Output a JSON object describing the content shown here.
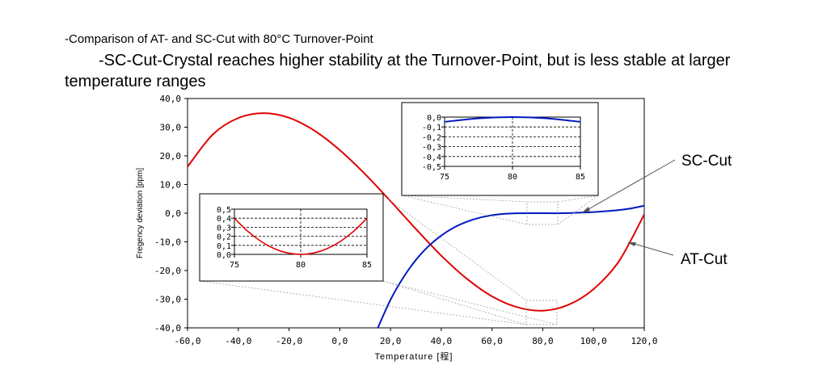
{
  "heading": "-Comparison of AT- and SC-Cut with 80°C Turnover-Point",
  "subheading": "-SC-Cut-Crystal reaches higher stability at the Turnover-Point, but is less stable at larger temperature ranges",
  "colors": {
    "at_cut": "#e00000",
    "sc_cut": "#0018c0"
  },
  "chart_data": [
    {
      "type": "line",
      "xlabel": "Temperature [程]",
      "ylabel": "Fregency deviation [ppm]",
      "xlim": [
        -60,
        120
      ],
      "ylim": [
        -40,
        40
      ],
      "xticks": [
        "-60,0",
        "-40,0",
        "-20,0",
        "0,0",
        "20,0",
        "40,0",
        "60,0",
        "80,0",
        "100,0",
        "120,0"
      ],
      "yticks": [
        "40,0",
        "30,0",
        "20,0",
        "10,0",
        "0,0",
        "-10,0",
        "-20,0",
        "-30,0",
        "-40,0"
      ],
      "annotations": [
        "SC-Cut",
        "AT-Cut"
      ],
      "series": [
        {
          "name": "AT-Cut",
          "x": [
            -60,
            -50,
            -40,
            -30,
            -20,
            -10,
            0,
            10,
            20,
            30,
            40,
            50,
            60,
            70,
            80,
            90,
            100,
            110,
            120
          ],
          "y": [
            16.2,
            27.5,
            33.2,
            34.9,
            33.3,
            28.8,
            22.0,
            13.6,
            4.2,
            -5.5,
            -14.8,
            -22.8,
            -29.0,
            -32.8,
            -34.0,
            -32.0,
            -26.5,
            -16.8,
            -0.4
          ]
        },
        {
          "name": "SC-Cut",
          "x": [
            15,
            20,
            25,
            30,
            35,
            40,
            45,
            50,
            55,
            60,
            65,
            70,
            75,
            80,
            85,
            90,
            95,
            100,
            105,
            110,
            115,
            120
          ],
          "y": [
            -40.0,
            -30.2,
            -22.5,
            -16.3,
            -11.5,
            -7.8,
            -5.0,
            -3.0,
            -1.6,
            -0.7,
            -0.2,
            -0.04,
            -0.01,
            0.0,
            -0.02,
            0.05,
            0.2,
            0.4,
            0.7,
            1.1,
            1.7,
            2.6
          ]
        }
      ]
    },
    {
      "type": "line",
      "xlim": [
        75,
        85
      ],
      "ylim": [
        -0.5,
        0
      ],
      "xticks": [
        "75",
        "80",
        "85"
      ],
      "yticks": [
        "0,0",
        "-0,1",
        "-0,2",
        "-0,3",
        "-0,4",
        "-0,5"
      ],
      "series": [
        {
          "name": "SC-Cut",
          "x": [
            75,
            77.5,
            80,
            82.5,
            85
          ],
          "y": [
            -0.048,
            -0.012,
            0.0,
            -0.012,
            -0.048
          ]
        }
      ]
    },
    {
      "type": "line",
      "xlim": [
        75,
        85
      ],
      "ylim": [
        0,
        0.5
      ],
      "xticks": [
        "75",
        "80",
        "85"
      ],
      "yticks": [
        "0,5",
        "0,4",
        "0,3",
        "0,2",
        "0,1",
        "0,0"
      ],
      "series": [
        {
          "name": "AT-Cut",
          "x": [
            75,
            76,
            77,
            78,
            79,
            80,
            81,
            82,
            83,
            84,
            85
          ],
          "y": [
            0.4,
            0.256,
            0.144,
            0.064,
            0.016,
            0.0,
            0.016,
            0.064,
            0.144,
            0.256,
            0.4
          ]
        }
      ]
    }
  ]
}
